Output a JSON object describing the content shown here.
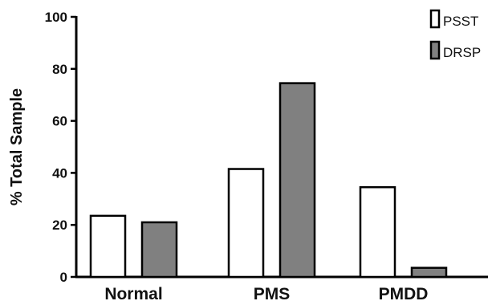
{
  "chart_data": {
    "type": "bar",
    "categories": [
      "Normal",
      "PMS",
      "PMDD"
    ],
    "series": [
      {
        "name": "PSST",
        "values": [
          23.5,
          41.5,
          34.5
        ],
        "color": "#ffffff"
      },
      {
        "name": "DRSP",
        "values": [
          21,
          74.5,
          3.5
        ],
        "color": "#808080"
      }
    ],
    "ylabel": "% Total Sample",
    "xlabel": "",
    "ylim": [
      0,
      100
    ],
    "yticks": [
      0,
      20,
      40,
      60,
      80,
      100
    ],
    "legend_position": "top-right",
    "grid": false
  }
}
